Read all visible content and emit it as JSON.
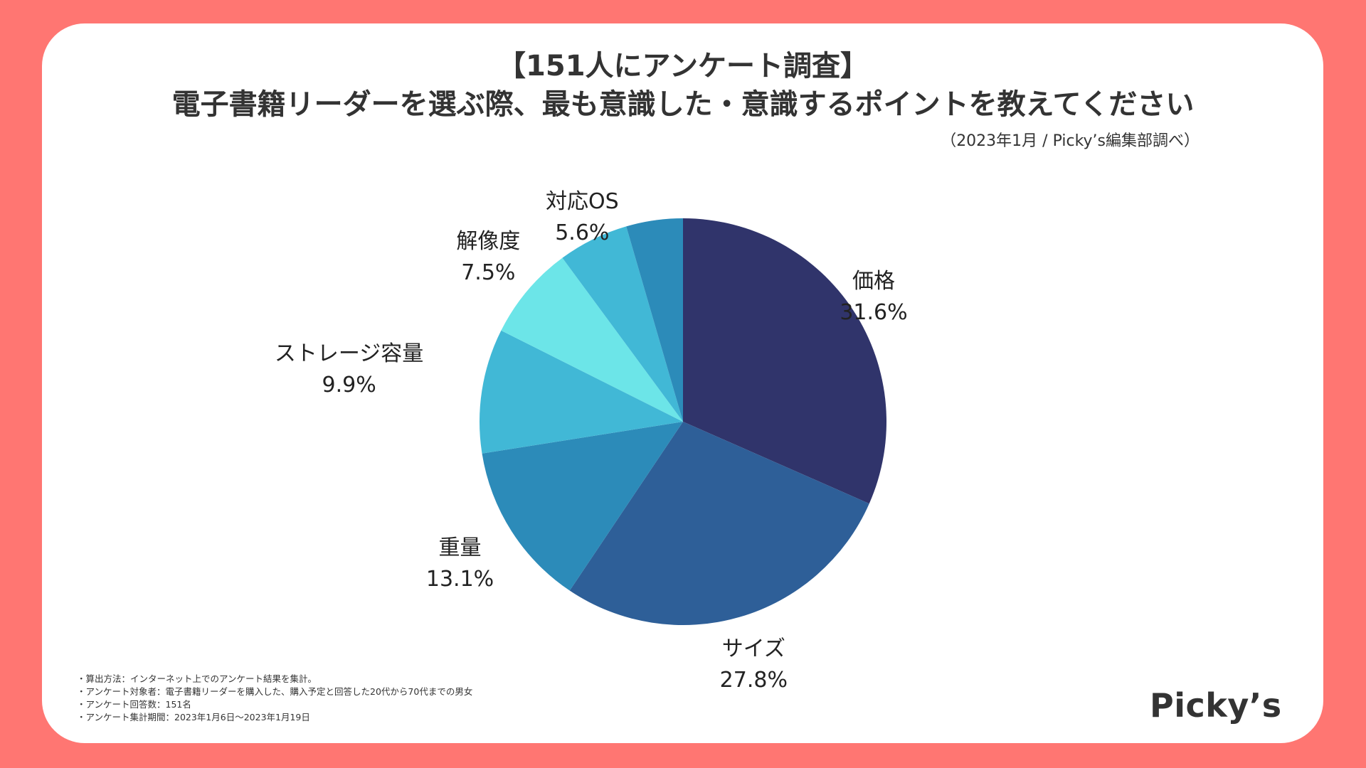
{
  "header": {
    "title_line1": "【151人にアンケート調査】",
    "title_line2": "電子書籍リーダーを選ぶ際、最も意識した・意識するポイントを教えてください",
    "source": "（2023年1月 / Picky’s編集部調べ）"
  },
  "chart_data": {
    "type": "pie",
    "title": "電子書籍リーダーを選ぶ際、最も意識した・意識するポイントを教えてください",
    "slices": [
      {
        "label": "価格",
        "value": 31.6,
        "value_label": "31.6%",
        "color": "#30346b"
      },
      {
        "label": "サイズ",
        "value": 27.8,
        "value_label": "27.8%",
        "color": "#2e5f98"
      },
      {
        "label": "重量",
        "value": 13.1,
        "value_label": "13.1%",
        "color": "#2c8bb9"
      },
      {
        "label": "ストレージ容量",
        "value": 9.9,
        "value_label": "9.9%",
        "color": "#41b8d6"
      },
      {
        "label": "解像度",
        "value": 7.5,
        "value_label": "7.5%",
        "color": "#6ce5e8"
      },
      {
        "label": "対応OS",
        "value": 5.6,
        "value_label": "5.6%",
        "color": "#41b8d6"
      },
      {
        "label": "",
        "value": 4.5,
        "value_label": "",
        "color": "#2c8bb9"
      }
    ]
  },
  "notes": [
    "・算出方法：インターネット上でのアンケート結果を集計。",
    "・アンケート対象者：電子書籍リーダーを購入した、購入予定と回答した20代から70代までの男女",
    "・アンケート回答数：151名",
    "・アンケート集計期間：2023年1月6日〜2023年1月19日"
  ],
  "brand": {
    "logo_text": "Picky’s"
  },
  "colors": {
    "background": "#ff7672",
    "card": "#ffffff",
    "text": "#333333"
  }
}
